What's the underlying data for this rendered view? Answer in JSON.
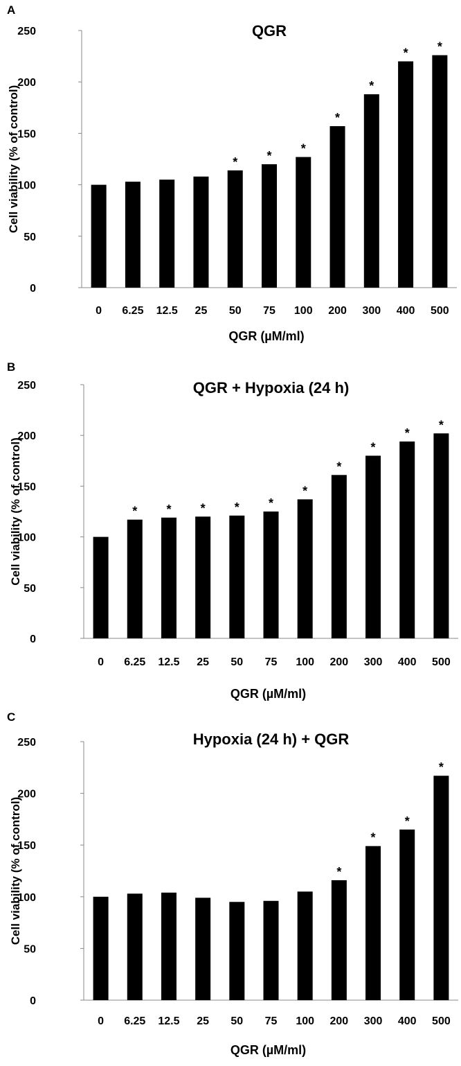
{
  "chart_data": [
    {
      "type": "bar",
      "panel_label": "A",
      "title": "QGR",
      "xlabel": "QGR (µM/ml)",
      "ylabel": "Cell viability (% of control)",
      "categories": [
        "0",
        "6.25",
        "12.5",
        "25",
        "50",
        "75",
        "100",
        "200",
        "300",
        "400",
        "500"
      ],
      "values": [
        100,
        103,
        105,
        108,
        114,
        120,
        127,
        157,
        188,
        220,
        226
      ],
      "significance": [
        "",
        "",
        "",
        "",
        "*",
        "*",
        "*",
        "*",
        "*",
        "*",
        "*"
      ],
      "ylim": [
        0,
        250
      ],
      "yticks": [
        0,
        50,
        100,
        150,
        200,
        250
      ],
      "grid": false,
      "bar_color": "#000000"
    },
    {
      "type": "bar",
      "panel_label": "B",
      "title": "QGR + Hypoxia (24 h)",
      "xlabel": "QGR (µM/ml)",
      "ylabel": "Cell viability (% of control)",
      "categories": [
        "0",
        "6.25",
        "12.5",
        "25",
        "50",
        "75",
        "100",
        "200",
        "300",
        "400",
        "500"
      ],
      "values": [
        100,
        117,
        119,
        120,
        121,
        125,
        137,
        161,
        180,
        194,
        202
      ],
      "significance": [
        "",
        "*",
        "*",
        "*",
        "*",
        "*",
        "*",
        "*",
        "*",
        "*",
        "*"
      ],
      "ylim": [
        0,
        250
      ],
      "yticks": [
        0,
        50,
        100,
        150,
        200,
        250
      ],
      "grid": false,
      "bar_color": "#000000"
    },
    {
      "type": "bar",
      "panel_label": "C",
      "title": "Hypoxia (24 h) + QGR",
      "xlabel": "QGR (µM/ml)",
      "ylabel": "Cell viability (% of control)",
      "categories": [
        "0",
        "6.25",
        "12.5",
        "25",
        "50",
        "75",
        "100",
        "200",
        "300",
        "400",
        "500"
      ],
      "values": [
        100,
        103,
        104,
        99,
        95,
        96,
        105,
        116,
        149,
        165,
        217
      ],
      "significance": [
        "",
        "",
        "",
        "",
        "",
        "",
        "",
        "*",
        "*",
        "*",
        "*"
      ],
      "ylim": [
        0,
        250
      ],
      "yticks": [
        0,
        50,
        100,
        150,
        200,
        250
      ],
      "grid": false,
      "bar_color": "#000000"
    }
  ]
}
